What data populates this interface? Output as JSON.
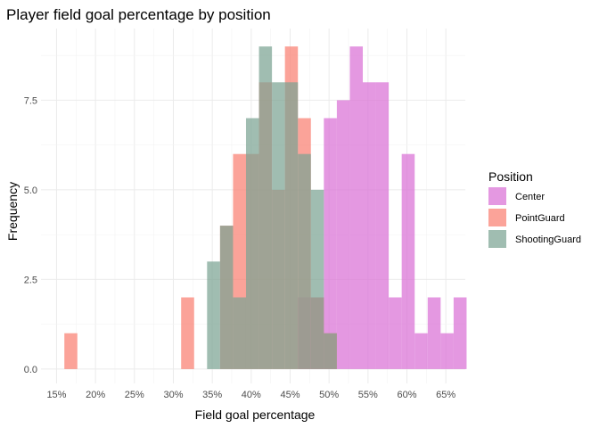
{
  "chart_data": {
    "type": "bar",
    "subtype": "overlapping-histogram",
    "title": "Player field goal percentage by position",
    "xlabel": "Field goal percentage",
    "ylabel": "Frequency",
    "x_ticks": [
      "15%",
      "20%",
      "25%",
      "30%",
      "35%",
      "40%",
      "45%",
      "50%",
      "55%",
      "60%",
      "65%"
    ],
    "x_tick_values": [
      15,
      20,
      25,
      30,
      35,
      40,
      45,
      50,
      55,
      60,
      65
    ],
    "y_ticks": [
      "0.0",
      "2.5",
      "5.0",
      "7.5"
    ],
    "y_tick_values": [
      0,
      2.5,
      5,
      7.5
    ],
    "xlim": [
      13,
      67.5
    ],
    "ylim": [
      -0.4,
      9.5
    ],
    "bin_width": 1.666667,
    "grid": true,
    "legend": {
      "title": "Position",
      "placement": "right",
      "entries": [
        "Center",
        "PointGuard",
        "ShootingGuard"
      ]
    },
    "series": [
      {
        "name": "Center",
        "color": "#DA70D6",
        "bins": [
          {
            "x0": 46.0,
            "count": 2
          },
          {
            "x0": 47.667,
            "count": 2
          },
          {
            "x0": 49.333,
            "count": 7
          },
          {
            "x0": 51.0,
            "count": 7.5
          },
          {
            "x0": 52.667,
            "count": 9
          },
          {
            "x0": 54.333,
            "count": 8
          },
          {
            "x0": 56.0,
            "count": 8
          },
          {
            "x0": 57.667,
            "count": 2
          },
          {
            "x0": 59.333,
            "count": 6
          },
          {
            "x0": 61.0,
            "count": 1
          },
          {
            "x0": 62.667,
            "count": 2
          },
          {
            "x0": 64.333,
            "count": 1
          },
          {
            "x0": 66.0,
            "count": 2
          }
        ]
      },
      {
        "name": "PointGuard",
        "color": "#FA8072",
        "bins": [
          {
            "x0": 16.0,
            "count": 1
          },
          {
            "x0": 31.0,
            "count": 2
          },
          {
            "x0": 36.0,
            "count": 4
          },
          {
            "x0": 37.667,
            "count": 6
          },
          {
            "x0": 39.333,
            "count": 6
          },
          {
            "x0": 41.0,
            "count": 8
          },
          {
            "x0": 42.667,
            "count": 5
          },
          {
            "x0": 44.333,
            "count": 9
          },
          {
            "x0": 46.0,
            "count": 7
          },
          {
            "x0": 47.667,
            "count": 2
          },
          {
            "x0": 49.333,
            "count": 1
          }
        ]
      },
      {
        "name": "ShootingGuard",
        "color": "#7BA393",
        "bins": [
          {
            "x0": 34.333,
            "count": 3
          },
          {
            "x0": 36.0,
            "count": 4
          },
          {
            "x0": 37.667,
            "count": 2
          },
          {
            "x0": 39.333,
            "count": 7
          },
          {
            "x0": 41.0,
            "count": 9
          },
          {
            "x0": 42.667,
            "count": 8
          },
          {
            "x0": 44.333,
            "count": 8
          },
          {
            "x0": 46.0,
            "count": 6
          },
          {
            "x0": 47.667,
            "count": 5
          },
          {
            "x0": 49.333,
            "count": 1
          }
        ]
      }
    ]
  }
}
